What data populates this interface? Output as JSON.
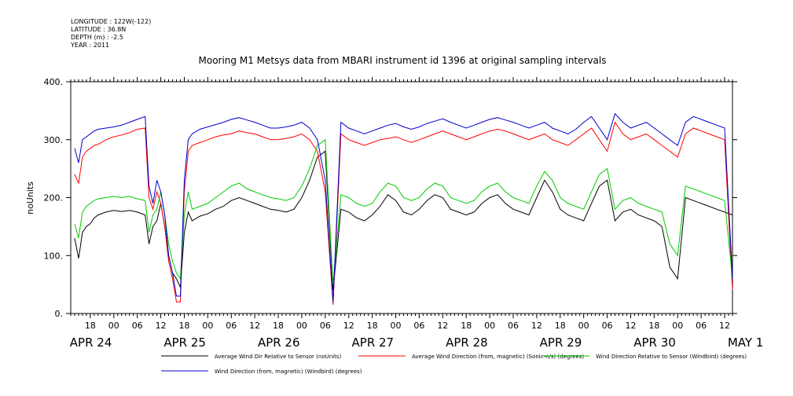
{
  "metadata": {
    "longitude": "LONGITUDE : 122W(-122)",
    "latitude": "LATITUDE : 36.8N",
    "depth": "DEPTH (m) : -2.5",
    "year": "YEAR : 2011"
  },
  "chart_data": {
    "type": "line",
    "title": "Mooring M1 Metsys data from MBARI instrument id 1396 at original sampling intervals",
    "ylabel": "noUnits",
    "xlabel": "",
    "ylim": [
      0,
      400
    ],
    "yticks": [
      "0.",
      "100.",
      "200.",
      "300.",
      "400."
    ],
    "hour_ticks": [
      {
        "t": 18,
        "label": "18"
      },
      {
        "t": 24,
        "label": "00"
      },
      {
        "t": 30,
        "label": "06"
      },
      {
        "t": 36,
        "label": "12"
      },
      {
        "t": 42,
        "label": "18"
      },
      {
        "t": 48,
        "label": "00"
      },
      {
        "t": 54,
        "label": "06"
      },
      {
        "t": 60,
        "label": "12"
      },
      {
        "t": 66,
        "label": "18"
      },
      {
        "t": 72,
        "label": "00"
      },
      {
        "t": 78,
        "label": "06"
      },
      {
        "t": 84,
        "label": "12"
      },
      {
        "t": 90,
        "label": "18"
      },
      {
        "t": 96,
        "label": "00"
      },
      {
        "t": 102,
        "label": "06"
      },
      {
        "t": 108,
        "label": "12"
      },
      {
        "t": 114,
        "label": "18"
      },
      {
        "t": 120,
        "label": "00"
      },
      {
        "t": 126,
        "label": "06"
      },
      {
        "t": 132,
        "label": "12"
      },
      {
        "t": 138,
        "label": "18"
      },
      {
        "t": 144,
        "label": "00"
      },
      {
        "t": 150,
        "label": "06"
      },
      {
        "t": 156,
        "label": "12"
      },
      {
        "t": 162,
        "label": "18"
      },
      {
        "t": 168,
        "label": "00"
      },
      {
        "t": 174,
        "label": "06"
      },
      {
        "t": 180,
        "label": "12"
      }
    ],
    "day_labels": [
      {
        "t": 24,
        "label": "APR 24"
      },
      {
        "t": 48,
        "label": "APR 25"
      },
      {
        "t": 72,
        "label": "APR 26"
      },
      {
        "t": 96,
        "label": "APR 27"
      },
      {
        "t": 120,
        "label": "APR 28"
      },
      {
        "t": 144,
        "label": "APR 29"
      },
      {
        "t": 168,
        "label": "APR 30"
      },
      {
        "t": 192,
        "label": "MAY  1"
      }
    ],
    "x_range_hours": [
      13,
      182
    ],
    "x_unit": "hours since 2011-04-23 00:00",
    "series": [
      {
        "name": "Average Wind Dir Relative to Sensor (noUnits)",
        "color": "#000000",
        "x": [
          14,
          15,
          16,
          17,
          18,
          19,
          20,
          22,
          24,
          26,
          28,
          30,
          32,
          33,
          34,
          35,
          36,
          37,
          38,
          39,
          40,
          41,
          42,
          43,
          44,
          46,
          48,
          50,
          52,
          54,
          56,
          58,
          60,
          62,
          64,
          66,
          68,
          70,
          72,
          74,
          76,
          78,
          80,
          82,
          84,
          86,
          88,
          90,
          92,
          94,
          96,
          98,
          100,
          102,
          104,
          106,
          108,
          110,
          112,
          114,
          116,
          118,
          120,
          122,
          124,
          126,
          128,
          130,
          132,
          134,
          136,
          138,
          140,
          142,
          144,
          146,
          148,
          150,
          152,
          154,
          156,
          158,
          160,
          162,
          164,
          166,
          168,
          170,
          172,
          174,
          176,
          178,
          180,
          182
        ],
        "y": [
          130,
          95,
          140,
          150,
          155,
          165,
          170,
          175,
          178,
          176,
          178,
          175,
          170,
          120,
          150,
          160,
          190,
          150,
          100,
          70,
          60,
          45,
          140,
          175,
          160,
          168,
          172,
          180,
          185,
          195,
          200,
          195,
          190,
          185,
          180,
          178,
          175,
          180,
          200,
          230,
          270,
          280,
          40,
          180,
          175,
          165,
          160,
          170,
          185,
          205,
          195,
          175,
          170,
          180,
          195,
          205,
          200,
          180,
          175,
          170,
          175,
          190,
          200,
          205,
          190,
          180,
          175,
          170,
          200,
          230,
          210,
          180,
          170,
          165,
          160,
          190,
          220,
          230,
          160,
          175,
          180,
          170,
          165,
          160,
          150,
          80,
          60,
          200,
          195,
          190,
          185,
          180,
          175,
          170
        ]
      },
      {
        "name": "Average Wind Direction (from, magnetic) (Sonic-n/s) (degrees)",
        "color": "#ff0000",
        "x": [
          14,
          15,
          16,
          17,
          18,
          19,
          20,
          22,
          24,
          26,
          28,
          30,
          32,
          33,
          34,
          35,
          36,
          37,
          38,
          39,
          40,
          41,
          42,
          43,
          44,
          46,
          48,
          50,
          52,
          54,
          56,
          58,
          60,
          62,
          64,
          66,
          68,
          70,
          72,
          74,
          76,
          78,
          80,
          82,
          84,
          86,
          88,
          90,
          92,
          94,
          96,
          98,
          100,
          102,
          104,
          106,
          108,
          110,
          112,
          114,
          116,
          118,
          120,
          122,
          124,
          126,
          128,
          130,
          132,
          134,
          136,
          138,
          140,
          142,
          144,
          146,
          148,
          150,
          152,
          154,
          156,
          158,
          160,
          162,
          164,
          166,
          168,
          170,
          172,
          174,
          176,
          178,
          180,
          182
        ],
        "y": [
          240,
          225,
          270,
          280,
          285,
          290,
          292,
          300,
          305,
          308,
          312,
          318,
          320,
          200,
          180,
          210,
          190,
          150,
          90,
          60,
          20,
          20,
          210,
          280,
          290,
          295,
          300,
          305,
          308,
          310,
          315,
          312,
          310,
          305,
          300,
          300,
          302,
          305,
          310,
          300,
          280,
          210,
          15,
          310,
          300,
          295,
          290,
          295,
          300,
          302,
          305,
          300,
          295,
          300,
          305,
          310,
          315,
          310,
          305,
          300,
          305,
          310,
          315,
          318,
          315,
          310,
          305,
          300,
          305,
          310,
          300,
          295,
          290,
          300,
          310,
          320,
          300,
          280,
          330,
          310,
          300,
          305,
          310,
          300,
          290,
          280,
          270,
          310,
          320,
          315,
          310,
          305,
          300,
          40
        ]
      },
      {
        "name": "Wind Direction Relative to Sensor (Windbird) (degrees)",
        "color": "#00cc00",
        "x": [
          14,
          15,
          16,
          17,
          18,
          19,
          20,
          22,
          24,
          26,
          28,
          30,
          32,
          33,
          34,
          35,
          36,
          37,
          38,
          39,
          40,
          41,
          42,
          43,
          44,
          46,
          48,
          50,
          52,
          54,
          56,
          58,
          60,
          62,
          64,
          66,
          68,
          70,
          72,
          74,
          76,
          78,
          80,
          82,
          84,
          86,
          88,
          90,
          92,
          94,
          96,
          98,
          100,
          102,
          104,
          106,
          108,
          110,
          112,
          114,
          116,
          118,
          120,
          122,
          124,
          126,
          128,
          130,
          132,
          134,
          136,
          138,
          140,
          142,
          144,
          146,
          148,
          150,
          152,
          154,
          156,
          158,
          160,
          162,
          164,
          166,
          168,
          170,
          172,
          174,
          176,
          178,
          180,
          182
        ],
        "y": [
          155,
          130,
          175,
          185,
          190,
          195,
          198,
          200,
          202,
          200,
          202,
          198,
          195,
          140,
          170,
          180,
          210,
          170,
          120,
          90,
          70,
          60,
          170,
          210,
          180,
          185,
          190,
          200,
          210,
          220,
          225,
          215,
          210,
          205,
          200,
          198,
          195,
          200,
          220,
          250,
          290,
          300,
          50,
          205,
          200,
          190,
          185,
          190,
          210,
          225,
          220,
          200,
          195,
          200,
          215,
          225,
          220,
          200,
          195,
          190,
          195,
          210,
          220,
          225,
          210,
          200,
          195,
          190,
          220,
          245,
          230,
          200,
          190,
          185,
          180,
          210,
          240,
          250,
          180,
          195,
          200,
          190,
          185,
          180,
          175,
          120,
          100,
          220,
          215,
          210,
          205,
          200,
          195,
          60
        ]
      },
      {
        "name": "Wind Direction (from, magnetic) (Windbird) (degrees)",
        "color": "#0000cc",
        "x": [
          14,
          15,
          16,
          17,
          18,
          19,
          20,
          22,
          24,
          26,
          28,
          30,
          32,
          33,
          34,
          35,
          36,
          37,
          38,
          39,
          40,
          41,
          42,
          43,
          44,
          46,
          48,
          50,
          52,
          54,
          56,
          58,
          60,
          62,
          64,
          66,
          68,
          70,
          72,
          74,
          76,
          78,
          80,
          82,
          84,
          86,
          88,
          90,
          92,
          94,
          96,
          98,
          100,
          102,
          104,
          106,
          108,
          110,
          112,
          114,
          116,
          118,
          120,
          122,
          124,
          126,
          128,
          130,
          132,
          134,
          136,
          138,
          140,
          142,
          144,
          146,
          148,
          150,
          152,
          154,
          156,
          158,
          160,
          162,
          164,
          166,
          168,
          170,
          172,
          174,
          176,
          178,
          180,
          182
        ],
        "y": [
          285,
          260,
          300,
          305,
          310,
          315,
          318,
          320,
          322,
          325,
          330,
          335,
          340,
          220,
          190,
          230,
          210,
          170,
          100,
          70,
          30,
          30,
          230,
          300,
          310,
          318,
          322,
          326,
          330,
          335,
          338,
          334,
          330,
          325,
          320,
          320,
          322,
          325,
          330,
          320,
          300,
          230,
          20,
          330,
          320,
          315,
          310,
          315,
          320,
          325,
          328,
          322,
          318,
          322,
          328,
          332,
          336,
          330,
          325,
          320,
          325,
          330,
          335,
          338,
          334,
          330,
          325,
          320,
          325,
          330,
          320,
          315,
          310,
          318,
          330,
          340,
          320,
          300,
          345,
          330,
          320,
          325,
          330,
          320,
          310,
          300,
          290,
          330,
          340,
          335,
          330,
          325,
          320,
          60
        ]
      }
    ],
    "legend": [
      {
        "label": "Average Wind Dir Relative to Sensor (noUnits)",
        "color": "#000000"
      },
      {
        "label": "Average Wind Direction (from, magnetic) (Sonic-n/s) (degrees)",
        "color": "#ff0000"
      },
      {
        "label": "Wind Direction Relative to Sensor (Windbird) (degrees)",
        "color": "#00cc00"
      },
      {
        "label": "Wind Direction (from, magnetic) (Windbird) (degrees)",
        "color": "#0000cc"
      }
    ]
  }
}
